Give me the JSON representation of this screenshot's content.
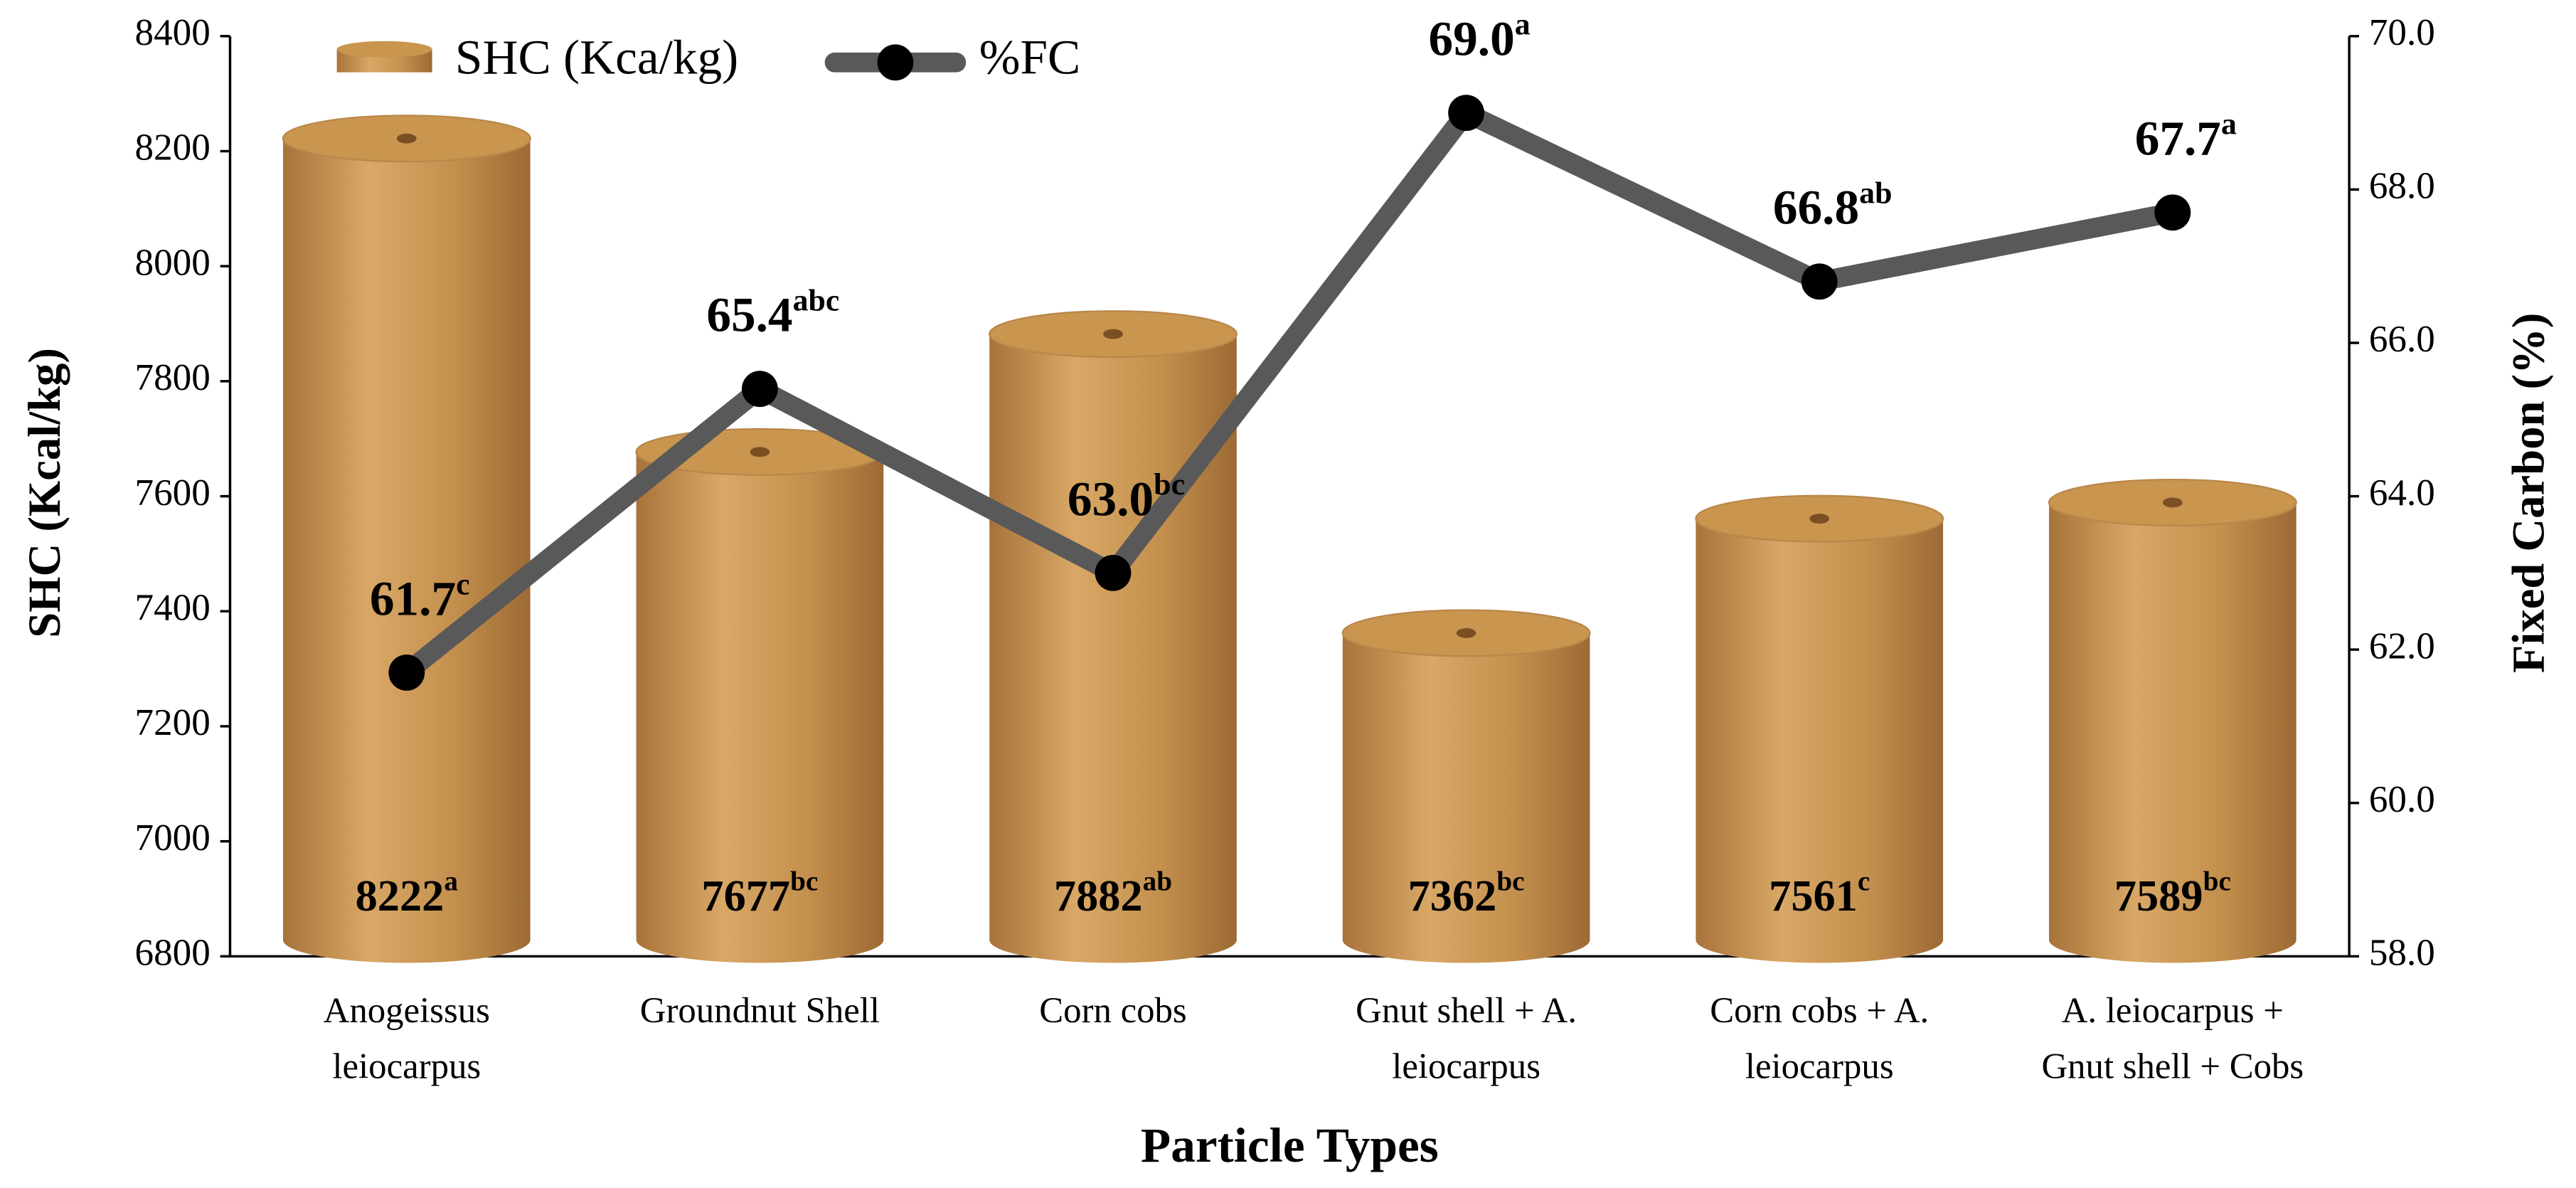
{
  "chart_data": {
    "type": "bar-line",
    "x_label": "Particle Types",
    "y_label": "SHC (Kcal/kg)",
    "y2_label": "Fixed Carbon (%)",
    "categories": [
      "Anogeissus leiocarpus",
      "Groundnut Shell",
      "Corn cobs",
      "Gnut shell + A. leiocarpus",
      "Corn cobs + A. leiocarpus",
      "A. leiocarpus + Gnut shell + Cobs"
    ],
    "series": [
      {
        "name": "SHC (Kca/kg)",
        "type": "bar",
        "color": "#c9954f",
        "values": [
          8222,
          7677,
          7882,
          7362,
          7561,
          7589
        ],
        "letters": [
          "a",
          "bc",
          "ab",
          "bc",
          "c",
          "bc"
        ]
      },
      {
        "name": "%FC",
        "type": "line",
        "axis": "y2",
        "color": "#595959",
        "marker_color": "#000000",
        "values": [
          61.7,
          65.4,
          63.0,
          69.0,
          66.8,
          67.7
        ],
        "value_labels": [
          "61.7",
          "65.4",
          "63.0",
          "69.0",
          "66.8",
          "67.7"
        ],
        "letters": [
          "c",
          "abc",
          "bc",
          "a",
          "ab",
          "a"
        ]
      }
    ],
    "ylim": [
      6800,
      8400
    ],
    "yticks": [
      6800,
      7000,
      7200,
      7400,
      7600,
      7800,
      8000,
      8200,
      8400
    ],
    "y2lim": [
      58,
      70
    ],
    "y2ticks": [
      {
        "value": 58,
        "label": "58.0"
      },
      {
        "value": 60,
        "label": "60.0"
      },
      {
        "value": 62,
        "label": "62.0"
      },
      {
        "value": 64,
        "label": "64.0"
      },
      {
        "value": 66,
        "label": "66.0"
      },
      {
        "value": 68,
        "label": "68.0"
      },
      {
        "value": 70,
        "label": "70.0"
      }
    ],
    "legend": "top-left",
    "grid": false
  }
}
